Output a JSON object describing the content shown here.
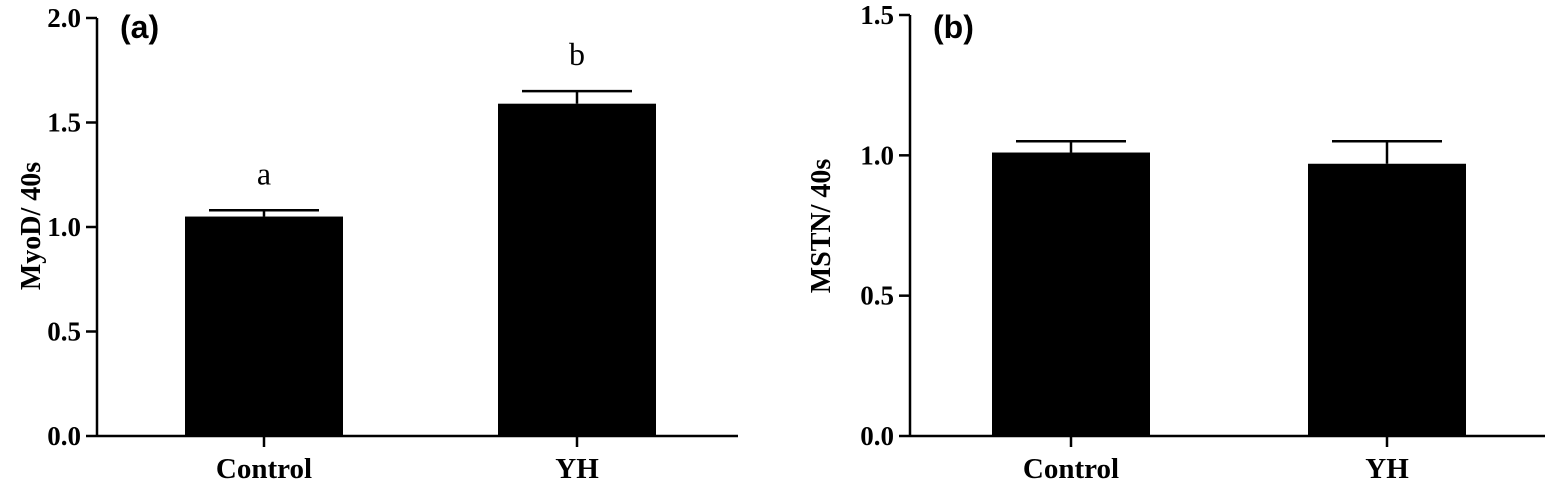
{
  "chart_data": [
    {
      "type": "bar",
      "panel_label": "(a)",
      "ylabel": "MyoD/ 40s",
      "xlabel": "",
      "categories": [
        "Control",
        "YH"
      ],
      "values": [
        1.05,
        1.59
      ],
      "errors": [
        0.03,
        0.06
      ],
      "significance": [
        "a",
        "b"
      ],
      "ylim": [
        0,
        2.0
      ],
      "yticks": [
        "0.0",
        "0.5",
        "1.0",
        "1.5",
        "2.0"
      ],
      "bar_color": "#000000",
      "grid": false
    },
    {
      "type": "bar",
      "panel_label": "(b)",
      "ylabel": "MSTN/ 40s",
      "xlabel": "",
      "categories": [
        "Control",
        "YH"
      ],
      "values": [
        1.01,
        0.97
      ],
      "errors": [
        0.04,
        0.08
      ],
      "significance": [
        "",
        ""
      ],
      "ylim": [
        0,
        1.5
      ],
      "yticks": [
        "0.0",
        "0.5",
        "1.0",
        "1.5"
      ],
      "bar_color": "#000000",
      "grid": false
    }
  ]
}
